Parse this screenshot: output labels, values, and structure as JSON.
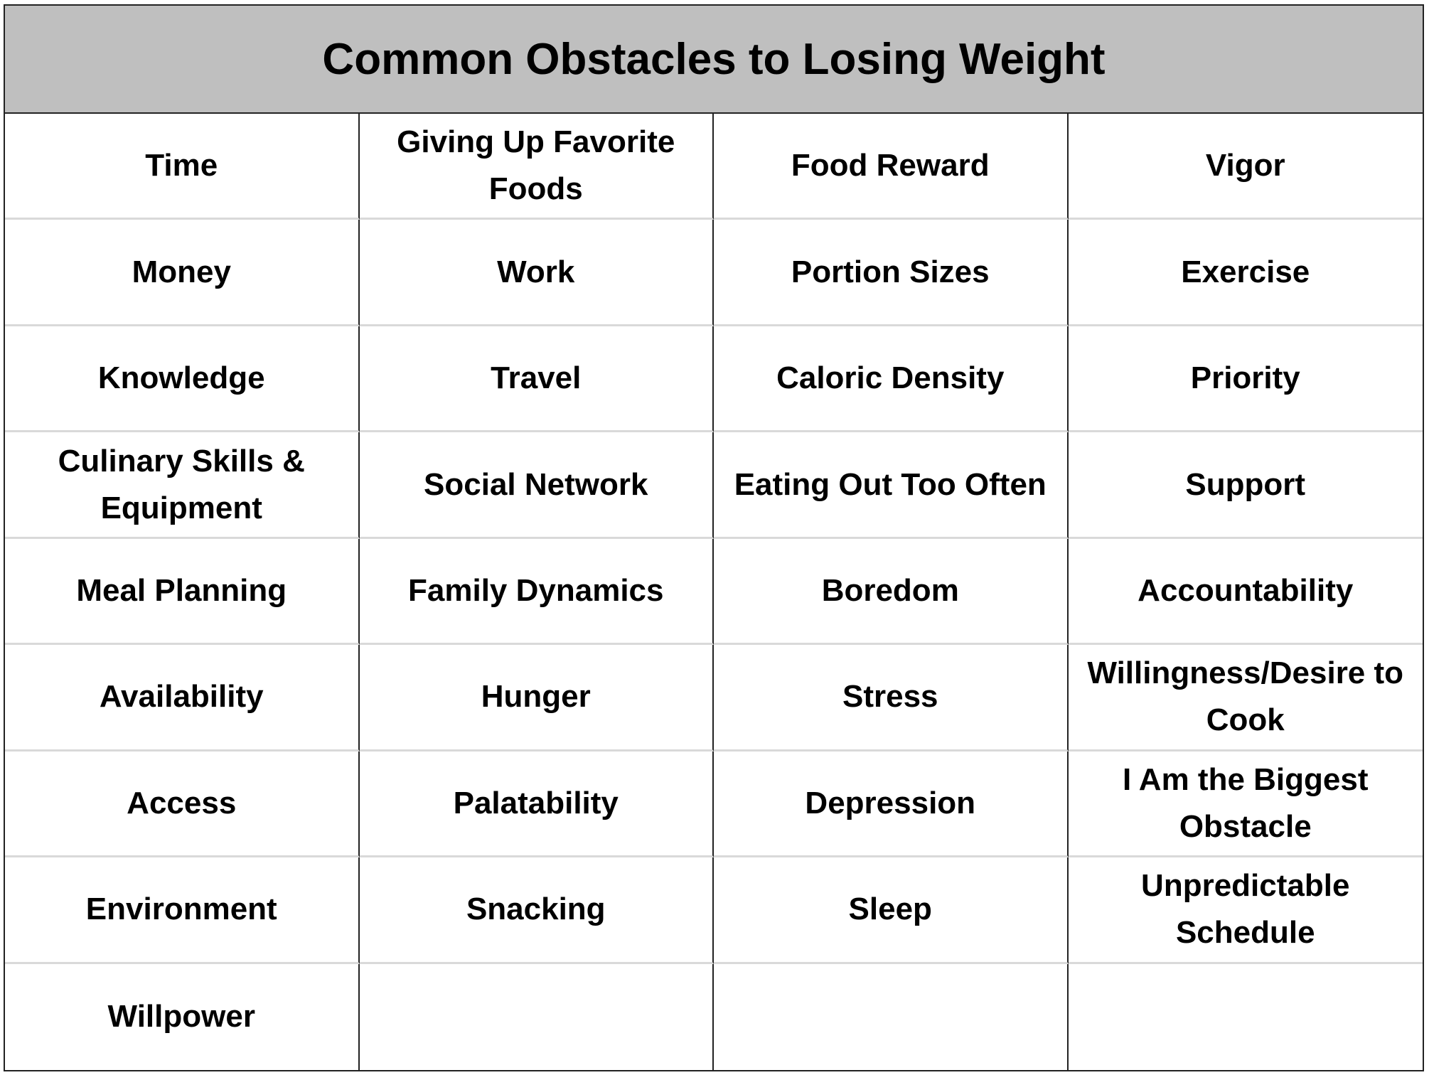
{
  "title": "Common Obstacles to Losing Weight",
  "rows": [
    [
      "Time",
      "Giving Up Favorite Foods",
      "Food Reward",
      "Vigor"
    ],
    [
      "Money",
      "Work",
      "Portion Sizes",
      "Exercise"
    ],
    [
      "Knowledge",
      "Travel",
      "Caloric Density",
      "Priority"
    ],
    [
      "Culinary Skills & Equipment",
      "Social Network",
      "Eating Out Too Often",
      "Support"
    ],
    [
      "Meal Planning",
      "Family Dynamics",
      "Boredom",
      "Accountability"
    ],
    [
      "Availability",
      "Hunger",
      "Stress",
      "Willingness/Desire to Cook"
    ],
    [
      "Access",
      "Palatability",
      "Depression",
      "I Am the Biggest Obstacle"
    ],
    [
      "Environment",
      "Snacking",
      "Sleep",
      "Unpredictable Schedule"
    ],
    [
      "Willpower",
      "",
      "",
      ""
    ]
  ]
}
